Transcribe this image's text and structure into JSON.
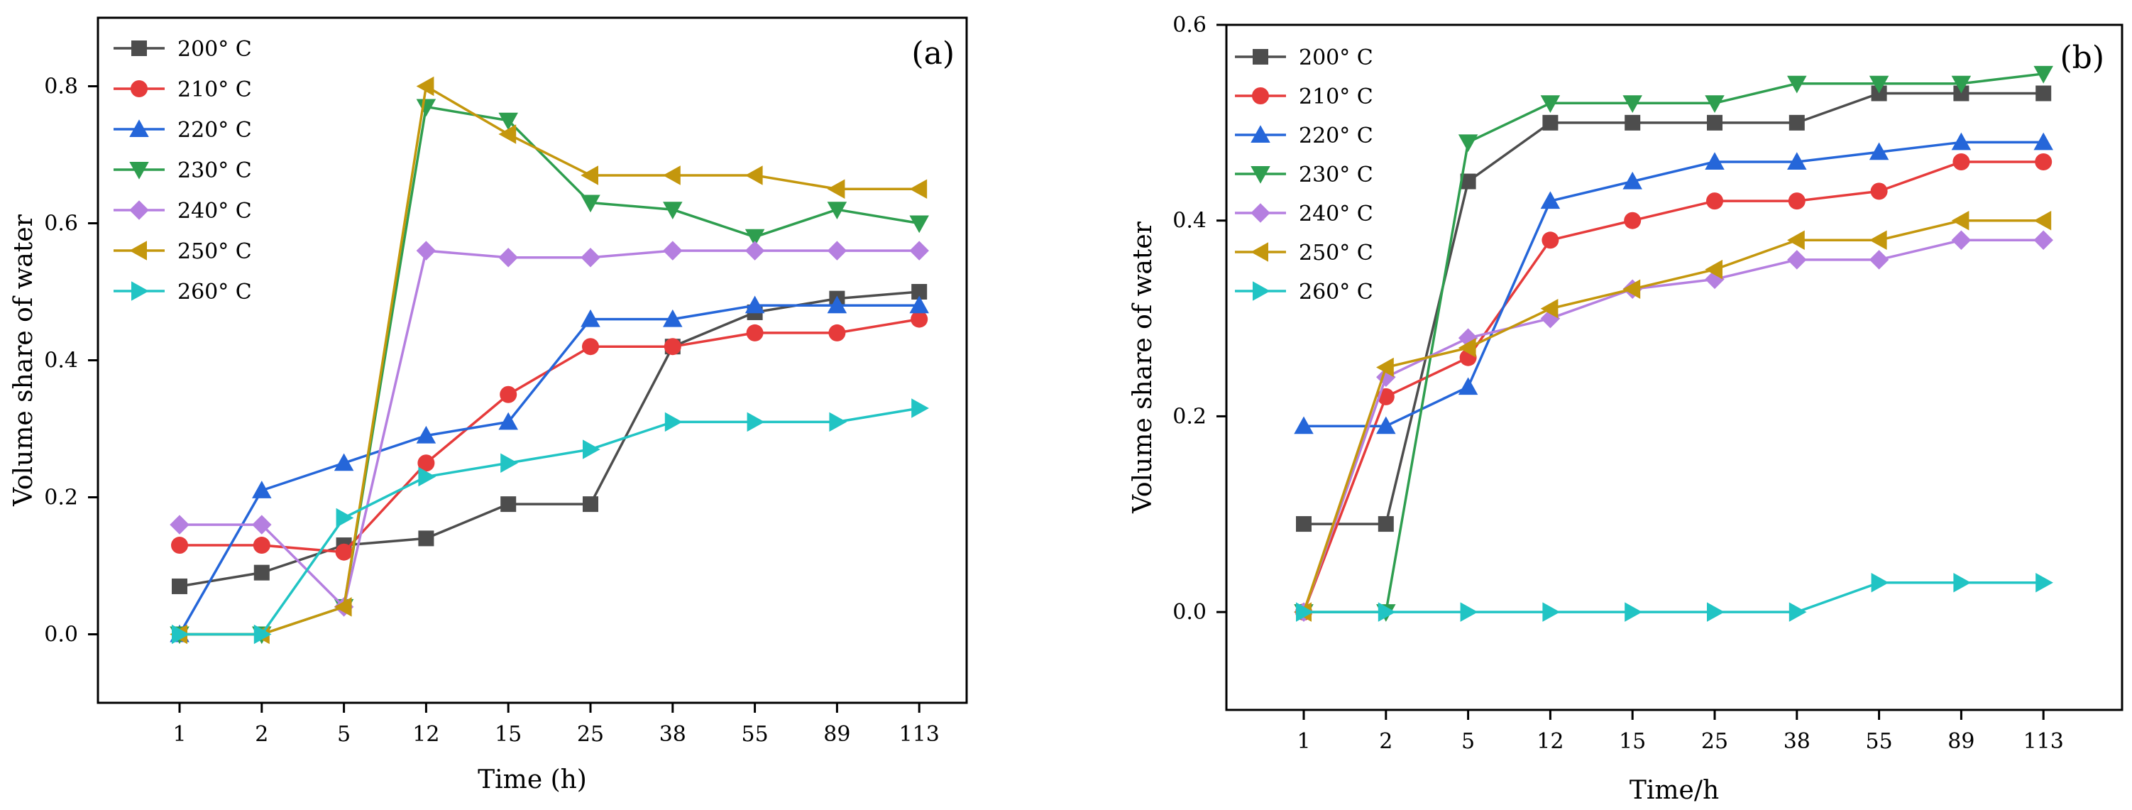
{
  "chart_data": [
    {
      "type": "line",
      "panel_label": "(a)",
      "xlabel": "Time (h)",
      "ylabel": "Volume share of water",
      "categories": [
        "1",
        "2",
        "5",
        "12",
        "15",
        "25",
        "38",
        "55",
        "89",
        "113"
      ],
      "ylim": [
        -0.1,
        0.9
      ],
      "yticks": [
        0.0,
        0.2,
        0.4,
        0.6,
        0.8
      ],
      "ytick_labels": [
        "0.0",
        "0.2",
        "0.4",
        "0.6",
        "0.8"
      ],
      "legend_position": "top-left",
      "grid": false,
      "series": [
        {
          "name": "200° C",
          "color": "#4d4d4d",
          "marker": "square",
          "values": [
            0.07,
            0.09,
            0.13,
            0.14,
            0.19,
            0.19,
            0.42,
            0.47,
            0.49,
            0.5
          ]
        },
        {
          "name": "210° C",
          "color": "#e63b3b",
          "marker": "circle",
          "values": [
            0.13,
            0.13,
            0.12,
            0.25,
            0.35,
            0.42,
            0.42,
            0.44,
            0.44,
            0.46
          ]
        },
        {
          "name": "220° C",
          "color": "#2566d9",
          "marker": "triangle-up",
          "values": [
            0.0,
            0.21,
            0.25,
            0.29,
            0.31,
            0.46,
            0.46,
            0.48,
            0.48,
            0.48
          ]
        },
        {
          "name": "230° C",
          "color": "#2e9e4f",
          "marker": "triangle-down",
          "values": [
            0.0,
            0.0,
            0.04,
            0.77,
            0.75,
            0.63,
            0.62,
            0.58,
            0.62,
            0.6
          ]
        },
        {
          "name": "240° C",
          "color": "#b57fe0",
          "marker": "diamond",
          "values": [
            0.16,
            0.16,
            0.04,
            0.56,
            0.55,
            0.55,
            0.56,
            0.56,
            0.56,
            0.56
          ]
        },
        {
          "name": "250° C",
          "color": "#c4970d",
          "marker": "triangle-left",
          "values": [
            0.0,
            0.0,
            0.04,
            0.8,
            0.73,
            0.67,
            0.67,
            0.67,
            0.65,
            0.65
          ]
        },
        {
          "name": "260° C",
          "color": "#21c4c4",
          "marker": "triangle-right",
          "values": [
            0.0,
            0.0,
            0.17,
            0.23,
            0.25,
            0.27,
            0.31,
            0.31,
            0.31,
            0.33
          ]
        }
      ]
    },
    {
      "type": "line",
      "panel_label": "(b)",
      "xlabel": "Time/h",
      "ylabel": "Volume share of water",
      "categories": [
        "1",
        "2",
        "5",
        "12",
        "15",
        "25",
        "38",
        "55",
        "89",
        "113"
      ],
      "ylim": [
        -0.1,
        0.6
      ],
      "yticks": [
        0.0,
        0.2,
        0.4,
        0.6
      ],
      "ytick_labels": [
        "0.0",
        "0.2",
        "0.4",
        "0.6"
      ],
      "legend_position": "top-left",
      "grid": false,
      "series": [
        {
          "name": "200° C",
          "color": "#4d4d4d",
          "marker": "square",
          "values": [
            0.09,
            0.09,
            0.44,
            0.5,
            0.5,
            0.5,
            0.5,
            0.53,
            0.53,
            0.53
          ]
        },
        {
          "name": "210° C",
          "color": "#e63b3b",
          "marker": "circle",
          "values": [
            0.0,
            0.22,
            0.26,
            0.38,
            0.4,
            0.42,
            0.42,
            0.43,
            0.46,
            0.46
          ]
        },
        {
          "name": "220° C",
          "color": "#2566d9",
          "marker": "triangle-up",
          "values": [
            0.19,
            0.19,
            0.23,
            0.42,
            0.44,
            0.46,
            0.46,
            0.47,
            0.48,
            0.48
          ]
        },
        {
          "name": "230° C",
          "color": "#2e9e4f",
          "marker": "triangle-down",
          "values": [
            0.0,
            0.0,
            0.48,
            0.52,
            0.52,
            0.52,
            0.54,
            0.54,
            0.54,
            0.55
          ]
        },
        {
          "name": "240° C",
          "color": "#b57fe0",
          "marker": "diamond",
          "values": [
            0.0,
            0.24,
            0.28,
            0.3,
            0.33,
            0.34,
            0.36,
            0.36,
            0.38,
            0.38
          ]
        },
        {
          "name": "250° C",
          "color": "#c4970d",
          "marker": "triangle-left",
          "values": [
            0.0,
            0.25,
            0.27,
            0.31,
            0.33,
            0.35,
            0.38,
            0.38,
            0.4,
            0.4
          ]
        },
        {
          "name": "260° C",
          "color": "#21c4c4",
          "marker": "triangle-right",
          "values": [
            0.0,
            0.0,
            0.0,
            0.0,
            0.0,
            0.0,
            0.0,
            0.03,
            0.03,
            0.03
          ]
        }
      ]
    }
  ]
}
